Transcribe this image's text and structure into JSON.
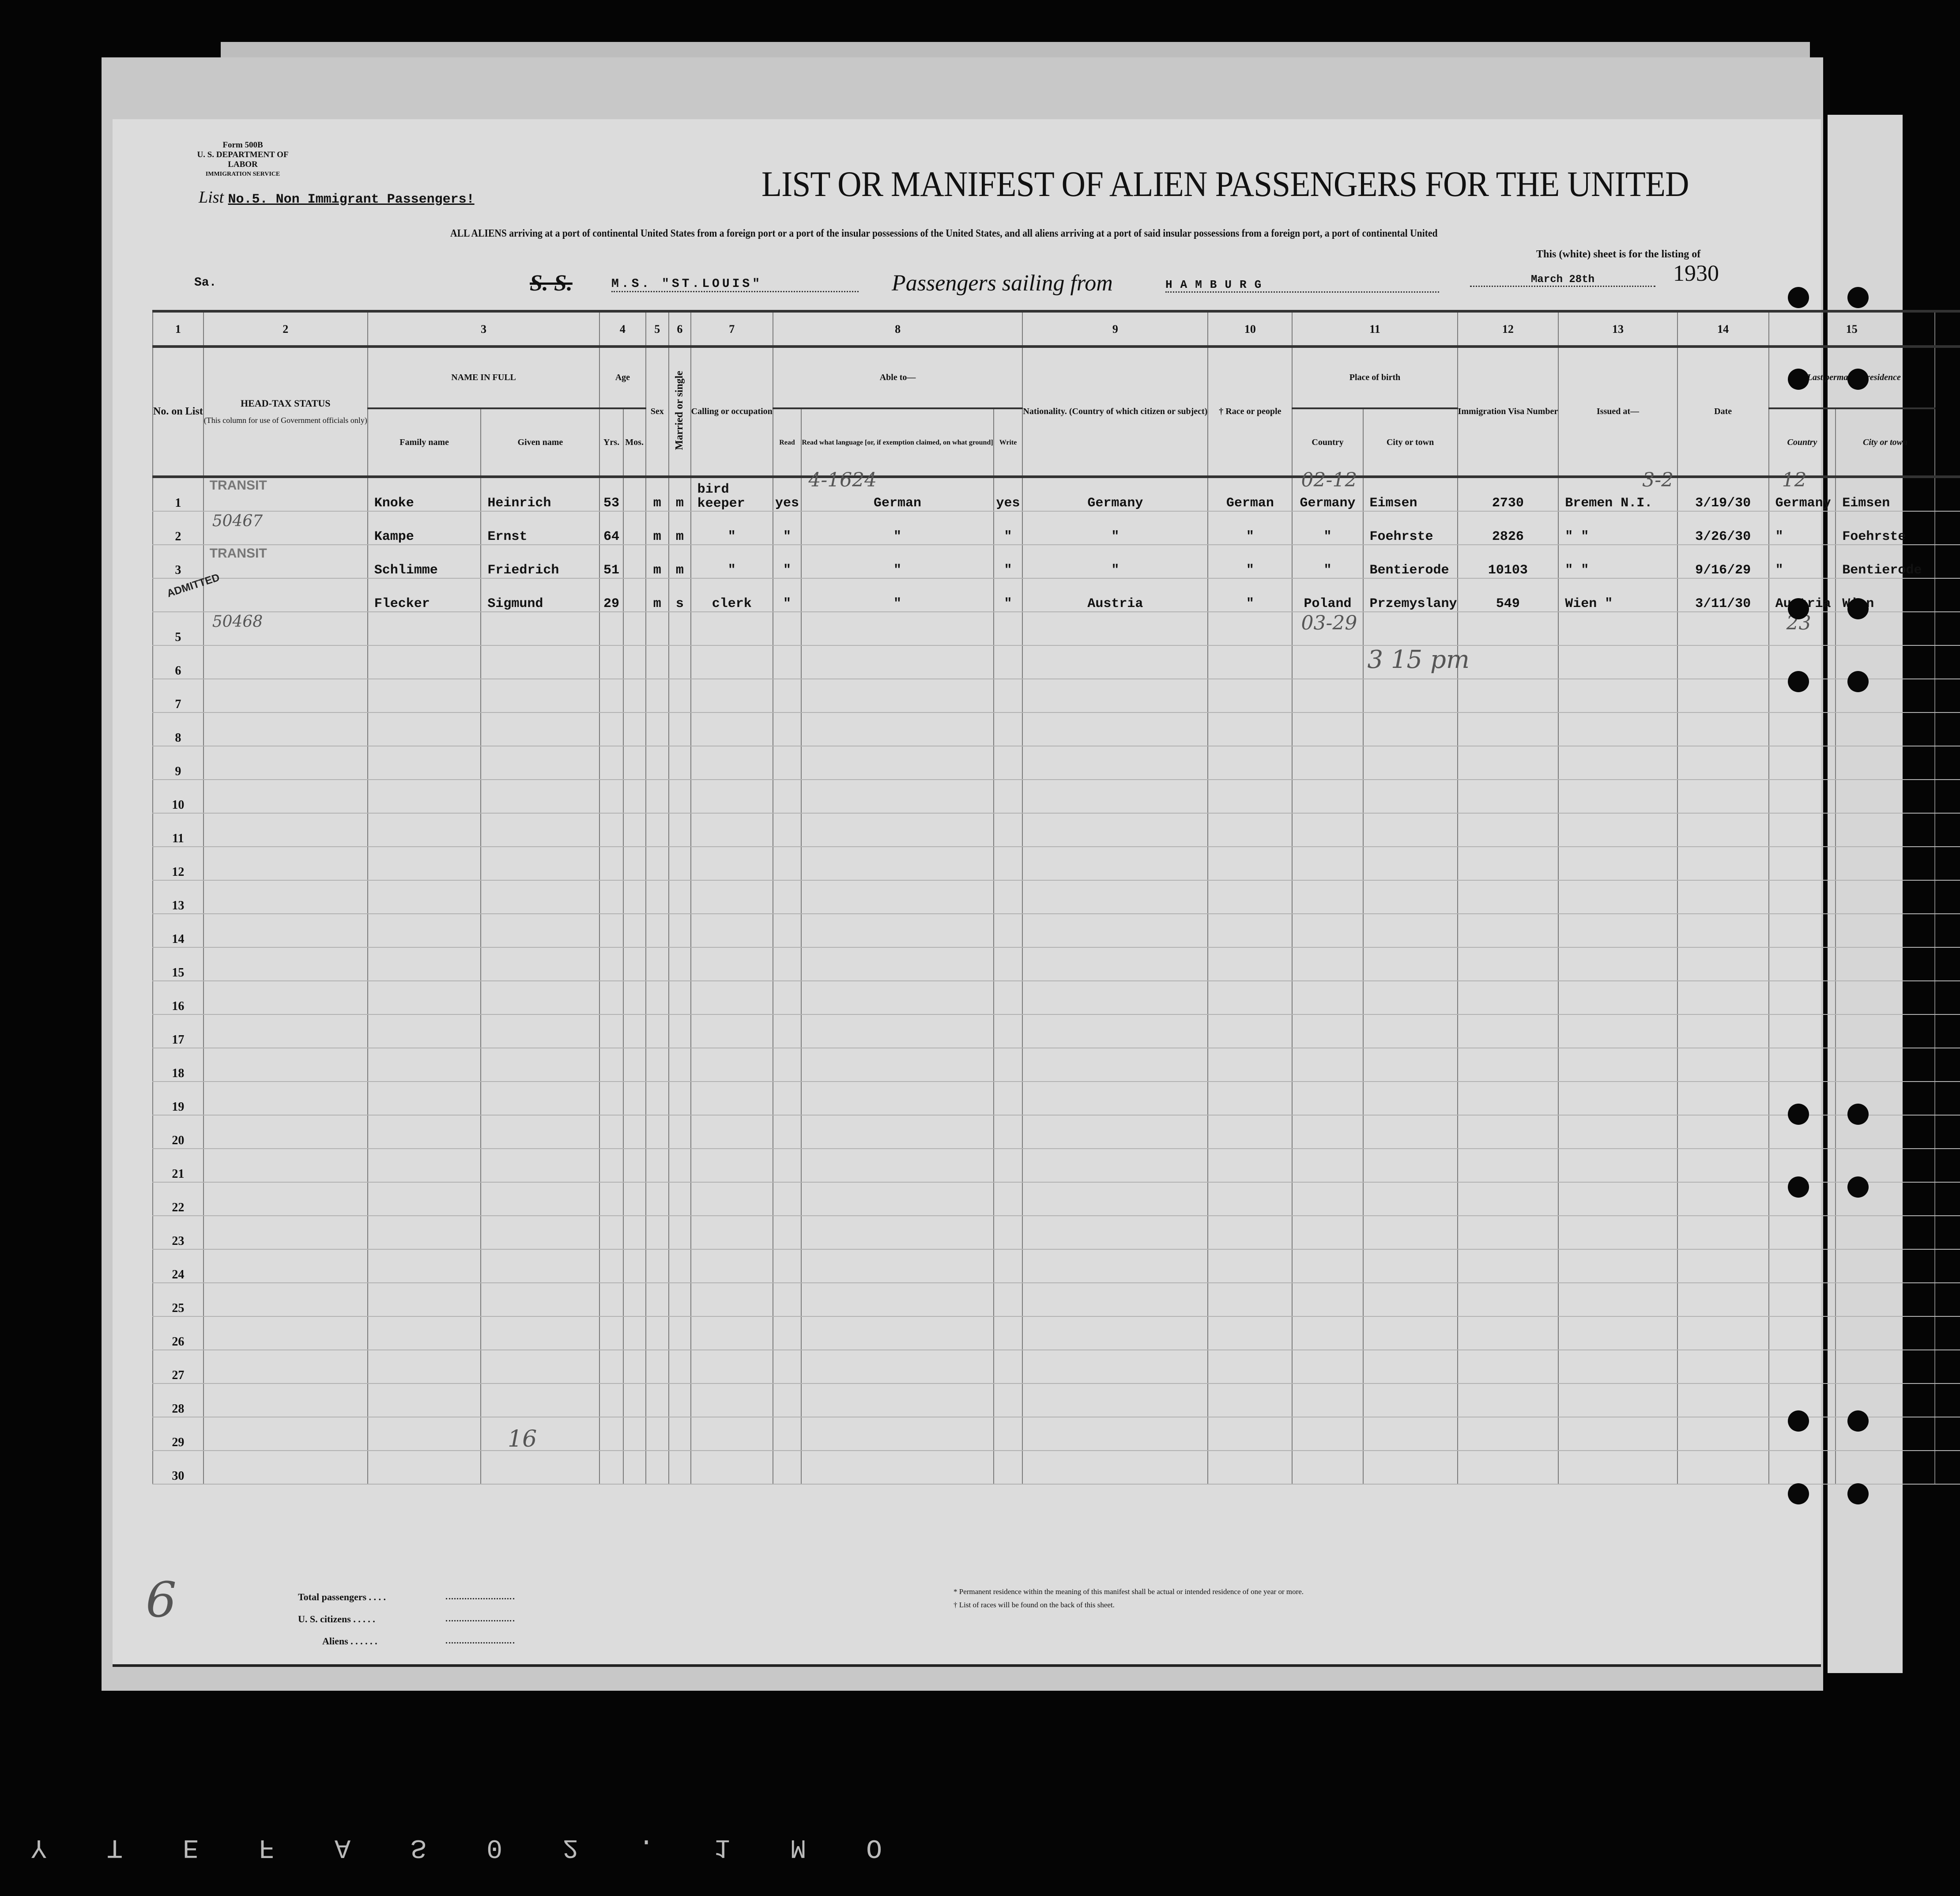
{
  "form": {
    "form_no": "Form 500B",
    "department": "U. S. DEPARTMENT OF LABOR",
    "service": "IMMIGRATION SERVICE"
  },
  "list": {
    "label": "List",
    "value": "No.5. Non Immigrant Passengers!"
  },
  "title": "LIST OR MANIFEST OF ALIEN PASSENGERS FOR THE UNITED",
  "subline": "ALL ALIENS arriving at a port of continental United States from a foreign port or a port of the insular possessions of the United States, and all aliens arriving at a port of said insular possessions from a foreign port, a port of continental United",
  "subline2": "This (white) sheet is for the listing of",
  "voyage": {
    "sa": "Sa.",
    "ss_label": "S. S.",
    "ship": "M.S. \"ST.LOUIS\"",
    "sailing_label": "Passengers sailing from",
    "port": "HAMBURG",
    "date": "March 28th",
    "year": "1930"
  },
  "column_numbers": [
    "1",
    "2",
    "3",
    "4",
    "5",
    "6",
    "7",
    "8",
    "9",
    "10",
    "11",
    "12",
    "13",
    "14",
    "15"
  ],
  "headers": {
    "no": "No. on List",
    "head_tax": "HEAD-TAX STATUS",
    "head_tax_note": "(This column for use of Government officials only)",
    "name": "NAME IN FULL",
    "family": "Family name",
    "given": "Given name",
    "age": "Age",
    "yrs": "Yrs.",
    "mos": "Mos.",
    "sex": "Sex",
    "married": "Married or single",
    "calling": "Calling or occupation",
    "able": "Able to—",
    "read": "Read",
    "read_lang": "Read what language [or, if exemption claimed, on what ground]",
    "write": "Write",
    "nationality": "Nationality. (Country of which citizen or subject)",
    "race": "† Race or people",
    "birth": "Place of birth",
    "country": "Country",
    "city": "City or town",
    "visa": "Immigration Visa Number",
    "issued": "Issued at—",
    "date": "Date",
    "residence": "*Last permanent residence",
    "res_country": "Country",
    "res_city": "City or town"
  },
  "rows": [
    {
      "no": "1",
      "family": "Knoke",
      "given": "Heinrich",
      "yrs": "53",
      "mos": "",
      "sex": "m",
      "married": "m",
      "occupation": "bird keeper",
      "read": "yes",
      "language": "German",
      "write": "yes",
      "nationality": "Germany",
      "race": "German",
      "birth_country": "Germany",
      "birth_city": "Eimsen",
      "visa": "2730",
      "issued": "Bremen  N.I.",
      "date": "3/19/30",
      "res_country": "Germany",
      "res_city": "Eimsen"
    },
    {
      "no": "2",
      "family": "Kampe",
      "given": "Ernst",
      "yrs": "64",
      "mos": "",
      "sex": "m",
      "married": "m",
      "occupation": "\"",
      "read": "\"",
      "language": "\"",
      "write": "\"",
      "nationality": "\"",
      "race": "\"",
      "birth_country": "\"",
      "birth_city": "Foehrste",
      "visa": "2826",
      "issued": "\"    \"",
      "date": "3/26/30",
      "res_country": "\"",
      "res_city": "Foehrste"
    },
    {
      "no": "3",
      "family": "Schlimme",
      "given": "Friedrich",
      "yrs": "51",
      "mos": "",
      "sex": "m",
      "married": "m",
      "occupation": "\"",
      "read": "\"",
      "language": "\"",
      "write": "\"",
      "nationality": "\"",
      "race": "\"",
      "birth_country": "\"",
      "birth_city": "Bentierode",
      "visa": "10103",
      "issued": "\"    \"",
      "date": "9/16/29",
      "res_country": "\"",
      "res_city": "Bentierode"
    },
    {
      "no": "",
      "family": "Flecker",
      "given": "Sigmund",
      "yrs": "29",
      "mos": "",
      "sex": "m",
      "married": "s",
      "occupation": "clerk",
      "read": "\"",
      "language": "\"",
      "write": "\"",
      "nationality": "Austria",
      "race": "\"",
      "birth_country": "Poland",
      "birth_city": "Przemyslany",
      "visa": "549",
      "issued": "Wien    \"",
      "date": "3/11/30",
      "res_country": "Austria",
      "res_city": "Wien"
    }
  ],
  "blank_row_numbers": [
    "5",
    "6",
    "7",
    "8",
    "9",
    "10",
    "11",
    "12",
    "13",
    "14",
    "15",
    "16",
    "17",
    "18",
    "19",
    "20",
    "21",
    "22",
    "23",
    "24",
    "25",
    "26",
    "27",
    "28",
    "29",
    "30"
  ],
  "stamps": {
    "transit1": "TRANSIT",
    "transit2": "TRANSIT",
    "admitted": "ADMITTED"
  },
  "handwritten": {
    "h1": "4-1624",
    "h2": "02-12",
    "h3": "03-29",
    "h4": "3-2",
    "h5": "12",
    "h6": "23",
    "h7": "16",
    "h8": "6",
    "h9": "3 15 pm",
    "h10": "50467",
    "h11": "50468"
  },
  "footer": {
    "total": "Total passengers . . . .",
    "citizens": "U. S. citizens . . . . .",
    "aliens": "Aliens . . . . . .",
    "note1": "* Permanent residence within the meaning of this manifest shall be actual or intended residence of one year or more.",
    "note2": "† List of races will be found on the back of this sheet."
  },
  "film_edge": "Y T E F A S  0 2 .  1 M O"
}
